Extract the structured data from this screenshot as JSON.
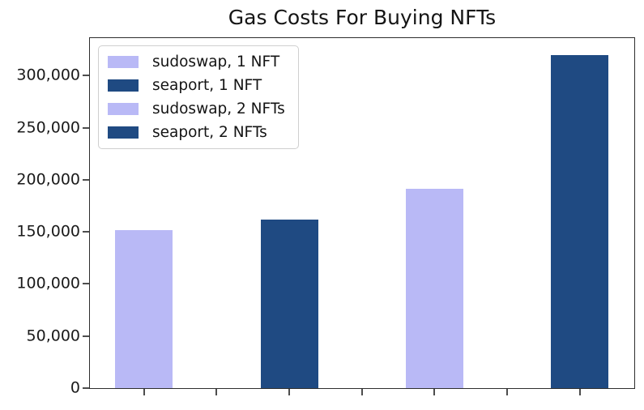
{
  "chart_data": {
    "type": "bar",
    "title": "Gas Costs For Buying NFTs",
    "categories": [
      "sudoswap, 1 NFT",
      "seaport, 1 NFT",
      "sudoswap, 2 NFTs",
      "seaport, 2 NFTs"
    ],
    "values": [
      152000,
      162000,
      191000,
      320000
    ],
    "bar_colors": [
      "#b9b9f6",
      "#1f4a82",
      "#b9b9f6",
      "#1f4a82"
    ],
    "xlabel": "",
    "ylabel": "",
    "ylim": [
      0,
      336000
    ],
    "grid": false,
    "x_tick_labels": [],
    "y_ticks": [
      {
        "value": 0,
        "label": "0"
      },
      {
        "value": 50000,
        "label": "50,000"
      },
      {
        "value": 100000,
        "label": "100,000"
      },
      {
        "value": 150000,
        "label": "150,000"
      },
      {
        "value": 200000,
        "label": "200,000"
      },
      {
        "value": 250000,
        "label": "250,000"
      },
      {
        "value": 300000,
        "label": "300,000"
      }
    ],
    "legend": {
      "position": "upper-left",
      "entries": [
        {
          "label": "sudoswap, 1 NFT",
          "color": "#b9b9f6"
        },
        {
          "label": "seaport, 1 NFT",
          "color": "#1f4a82"
        },
        {
          "label": "sudoswap, 2 NFTs",
          "color": "#b9b9f6"
        },
        {
          "label": "seaport, 2 NFTs",
          "color": "#1f4a82"
        }
      ]
    }
  }
}
